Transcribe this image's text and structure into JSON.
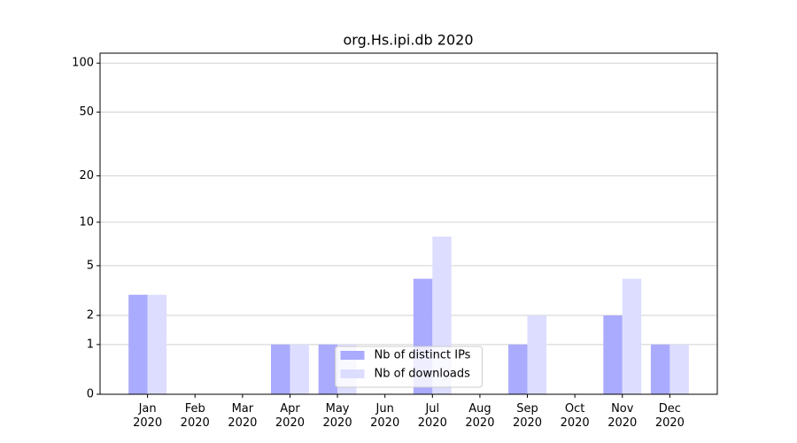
{
  "chart_data": {
    "type": "bar",
    "title": "org.Hs.ipi.db 2020",
    "categories": [
      "Jan 2020",
      "Feb 2020",
      "Mar 2020",
      "Apr 2020",
      "May 2020",
      "Jun 2020",
      "Jul 2020",
      "Aug 2020",
      "Sep 2020",
      "Oct 2020",
      "Nov 2020",
      "Dec 2020"
    ],
    "series": [
      {
        "name": "Nb of distinct IPs",
        "color": "#aaaaff",
        "values": [
          3,
          0,
          0,
          1,
          1,
          0,
          4,
          0,
          1,
          0,
          2,
          1
        ]
      },
      {
        "name": "Nb of downloads",
        "color": "#ddddff",
        "values": [
          3,
          0,
          0,
          1,
          1,
          0,
          8,
          0,
          2,
          0,
          4,
          1
        ]
      }
    ],
    "yscale": "log1p",
    "ylim": [
      0,
      115
    ],
    "yticks": [
      0,
      1,
      2,
      5,
      10,
      20,
      50,
      100
    ],
    "grid": true,
    "legend": "lower center"
  }
}
